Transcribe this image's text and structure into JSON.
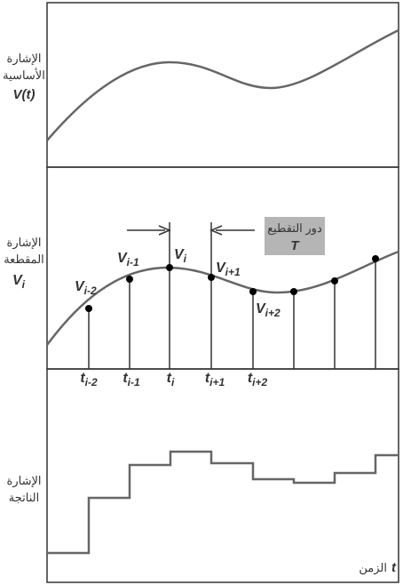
{
  "panels": [
    {
      "id": "basic",
      "label_lines": [
        "الإشارة",
        "الأساسية"
      ],
      "symbol": "V(t)"
    },
    {
      "id": "sampled",
      "label_lines": [
        "الإشارة",
        "المقطعة"
      ],
      "symbol": "V",
      "symbol_sub": "i"
    },
    {
      "id": "output",
      "label_lines": [
        "الإشارة",
        "الناتجة"
      ]
    }
  ],
  "chop_period": {
    "label": "دور التقطيع",
    "symbol": "T"
  },
  "time_axis": {
    "label": "الزمن",
    "symbol": "t"
  },
  "value_labels": [
    {
      "base": "V",
      "sub": "i-2"
    },
    {
      "base": "V",
      "sub": "i-1"
    },
    {
      "base": "V",
      "sub": "i"
    },
    {
      "base": "V",
      "sub": "i+1"
    },
    {
      "base": "V",
      "sub": "i+2"
    }
  ],
  "time_labels": [
    {
      "base": "t",
      "sub": "i-2"
    },
    {
      "base": "t",
      "sub": "i-1"
    },
    {
      "base": "t",
      "sub": "i"
    },
    {
      "base": "t",
      "sub": "i+1"
    },
    {
      "base": "t",
      "sub": "i+2"
    }
  ],
  "colors": {
    "line": "#666666",
    "frame": "#333333",
    "dot": "#000000",
    "box": "#b5b5b5",
    "text": "#333333"
  }
}
